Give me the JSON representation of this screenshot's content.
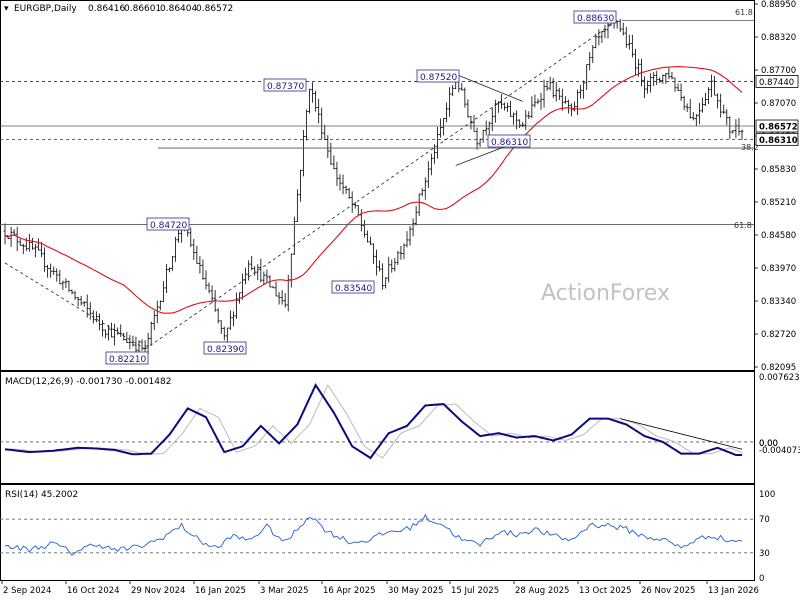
{
  "chart_data": [
    {
      "type": "candlestick",
      "header": {
        "symbol": "EURGBP,Daily",
        "open": "0.86416",
        "high": "0.86601",
        "low": "0.86404",
        "close": "0.86572"
      },
      "watermark": "ActionForex",
      "y_axis": {
        "ylim": [
          0.8185,
          0.8895
        ],
        "ticks": [
          "0.88950",
          "0.88320",
          "0.87700",
          "0.87070",
          "0.86450",
          "0.85830",
          "0.85210",
          "0.84580",
          "0.83970",
          "0.83340",
          "0.82720",
          "0.82095"
        ]
      },
      "x_ticks": [
        "2 Sep 2024",
        "16 Oct 2024",
        "29 Nov 2024",
        "16 Jan 2025",
        "3 Mar 2025",
        "16 Apr 2025",
        "30 May 2025",
        "15 Jul 2025",
        "28 Aug 2025",
        "13 Oct 2025",
        "26 Nov 2025",
        "13 Jan 2026"
      ],
      "price_labels": [
        "0.86572",
        "0.86310"
      ],
      "annotations": [
        "0.82210",
        "0.84720",
        "0.87370",
        "0.83540",
        "0.82390",
        "0.87520",
        "0.86310",
        "0.88630"
      ],
      "fib_labels": [
        "61.8",
        "61.8",
        "38.2"
      ],
      "key_levels": [
        {
          "value": 0.8744,
          "label": "0.87440"
        },
        {
          "value": 0.8631,
          "label": "0.86310"
        },
        {
          "value": 0.8657,
          "label": ""
        }
      ],
      "swing_points": [
        {
          "index": 0,
          "price": 0.8452
        },
        {
          "index": 10,
          "price": 0.8412
        },
        {
          "index": 25,
          "price": 0.831
        },
        {
          "index": 33,
          "price": 0.8261
        },
        {
          "index": 46,
          "price": 0.8221
        },
        {
          "index": 58,
          "price": 0.8472
        },
        {
          "index": 67,
          "price": 0.833
        },
        {
          "index": 72,
          "price": 0.8239
        },
        {
          "index": 80,
          "price": 0.8395
        },
        {
          "index": 92,
          "price": 0.831
        },
        {
          "index": 100,
          "price": 0.8737
        },
        {
          "index": 108,
          "price": 0.857
        },
        {
          "index": 116,
          "price": 0.848
        },
        {
          "index": 124,
          "price": 0.8354
        },
        {
          "index": 132,
          "price": 0.844
        },
        {
          "index": 140,
          "price": 0.859
        },
        {
          "index": 148,
          "price": 0.8752
        },
        {
          "index": 155,
          "price": 0.8631
        },
        {
          "index": 162,
          "price": 0.87
        },
        {
          "index": 170,
          "price": 0.866
        },
        {
          "index": 178,
          "price": 0.874
        },
        {
          "index": 186,
          "price": 0.868
        },
        {
          "index": 194,
          "price": 0.882
        },
        {
          "index": 201,
          "price": 0.8863
        },
        {
          "index": 210,
          "price": 0.874
        },
        {
          "index": 218,
          "price": 0.876
        },
        {
          "index": 226,
          "price": 0.867
        },
        {
          "index": 232,
          "price": 0.874
        },
        {
          "index": 238,
          "price": 0.865
        },
        {
          "index": 242,
          "price": 0.8657
        }
      ]
    },
    {
      "type": "line",
      "name": "macd",
      "header": "MACD(12,26,9) -0.001730 -0.001482",
      "y_ticks": [
        "0.007623",
        "0.00",
        "0.00",
        "-0.004073"
      ],
      "ylim": [
        -0.0055,
        0.0085
      ],
      "main_points": [
        [
          0,
          -0.001
        ],
        [
          8,
          -0.0014
        ],
        [
          16,
          -0.0012
        ],
        [
          24,
          -0.0008
        ],
        [
          30,
          -0.0009
        ],
        [
          36,
          -0.0011
        ],
        [
          42,
          -0.0017
        ],
        [
          48,
          -0.0016
        ],
        [
          54,
          0.001
        ],
        [
          60,
          0.0046
        ],
        [
          66,
          0.0034
        ],
        [
          72,
          -0.0014
        ],
        [
          78,
          -0.0006
        ],
        [
          84,
          0.0022
        ],
        [
          90,
          -0.0002
        ],
        [
          96,
          0.0024
        ],
        [
          102,
          0.0078
        ],
        [
          108,
          0.004
        ],
        [
          114,
          -0.0006
        ],
        [
          120,
          -0.0022
        ],
        [
          126,
          0.0012
        ],
        [
          132,
          0.0022
        ],
        [
          138,
          0.005
        ],
        [
          144,
          0.0052
        ],
        [
          150,
          0.0028
        ],
        [
          156,
          0.0008
        ],
        [
          162,
          0.0012
        ],
        [
          168,
          0.0006
        ],
        [
          174,
          0.0008
        ],
        [
          180,
          0.0002
        ],
        [
          186,
          0.001
        ],
        [
          192,
          0.0032
        ],
        [
          198,
          0.0032
        ],
        [
          204,
          0.0024
        ],
        [
          210,
          0.0008
        ],
        [
          216,
          0.0
        ],
        [
          222,
          -0.0016
        ],
        [
          228,
          -0.0016
        ],
        [
          234,
          -0.0008
        ],
        [
          240,
          -0.0018
        ]
      ],
      "trendline": [
        [
          202,
          0.0032
        ],
        [
          242,
          -0.001
        ]
      ]
    },
    {
      "type": "line",
      "name": "rsi",
      "header": "RSI(14) 45.2002",
      "y_ticks": [
        "100",
        "70",
        "30",
        "0"
      ],
      "ylim": [
        0,
        100
      ],
      "levels": [
        70,
        30
      ],
      "points": [
        [
          0,
          38
        ],
        [
          8,
          34
        ],
        [
          16,
          41
        ],
        [
          22,
          30
        ],
        [
          30,
          41
        ],
        [
          36,
          33
        ],
        [
          44,
          37
        ],
        [
          50,
          45
        ],
        [
          58,
          62
        ],
        [
          64,
          44
        ],
        [
          70,
          35
        ],
        [
          74,
          50
        ],
        [
          80,
          45
        ],
        [
          86,
          61
        ],
        [
          92,
          42
        ],
        [
          96,
          58
        ],
        [
          100,
          75
        ],
        [
          106,
          55
        ],
        [
          114,
          42
        ],
        [
          120,
          46
        ],
        [
          126,
          55
        ],
        [
          132,
          58
        ],
        [
          138,
          72
        ],
        [
          144,
          63
        ],
        [
          150,
          45
        ],
        [
          156,
          40
        ],
        [
          162,
          55
        ],
        [
          168,
          52
        ],
        [
          174,
          58
        ],
        [
          180,
          50
        ],
        [
          186,
          45
        ],
        [
          192,
          63
        ],
        [
          198,
          63
        ],
        [
          204,
          58
        ],
        [
          210,
          49
        ],
        [
          216,
          46
        ],
        [
          222,
          36
        ],
        [
          226,
          44
        ],
        [
          232,
          51
        ],
        [
          238,
          44
        ],
        [
          242,
          45
        ]
      ]
    }
  ]
}
